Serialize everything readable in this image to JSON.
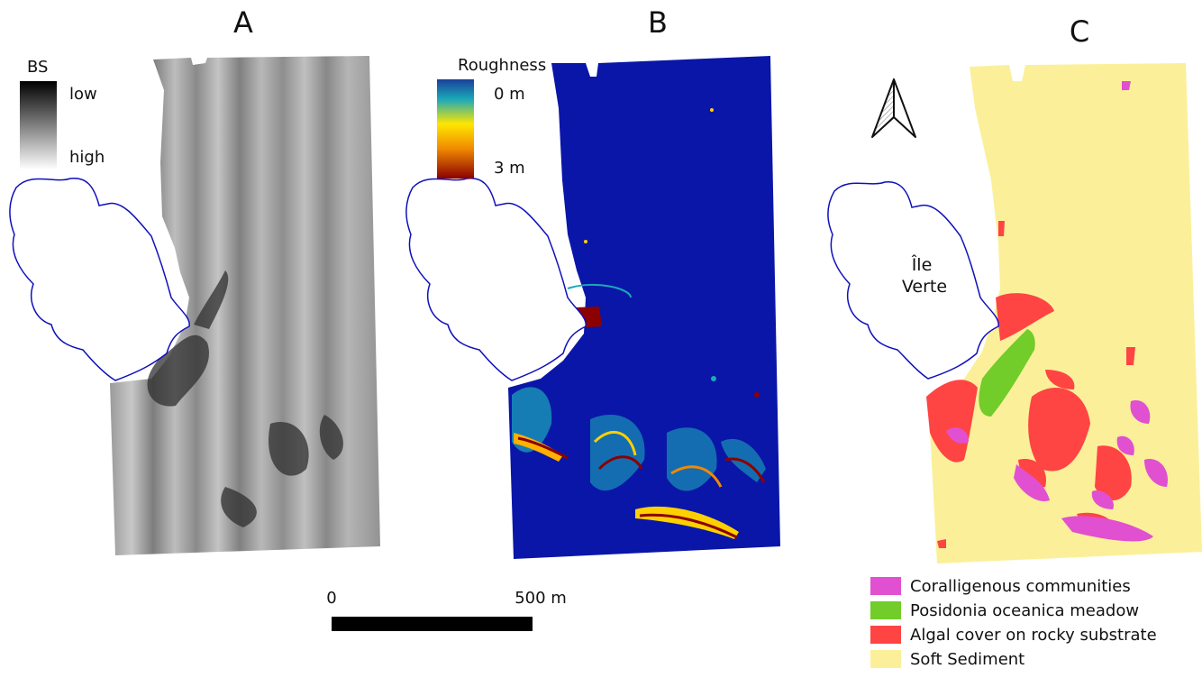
{
  "panels": {
    "a": {
      "letter": "A",
      "legend": {
        "title": "BS",
        "low": "low",
        "high": "high"
      }
    },
    "b": {
      "letter": "B",
      "legend": {
        "title": "Roughness",
        "top": "0 m",
        "bottom": "3 m"
      }
    },
    "c": {
      "letter": "C",
      "island": "Île Verte"
    }
  },
  "scalebar": {
    "start": "0",
    "end": "500 m"
  },
  "habitat_legend": [
    {
      "label": "Coralligenous communities",
      "color": "#e050d0"
    },
    {
      "label": "Posidonia oceanica meadow",
      "color": "#72cc2a"
    },
    {
      "label": "Algal cover on rocky substrate",
      "color": "#ff4444"
    },
    {
      "label": "Soft Sediment",
      "color": "#fbf099"
    }
  ],
  "colors": {
    "coast": "#1010bb",
    "roughness_low": "#0a16a8",
    "roughness_high": "#8b0000"
  }
}
